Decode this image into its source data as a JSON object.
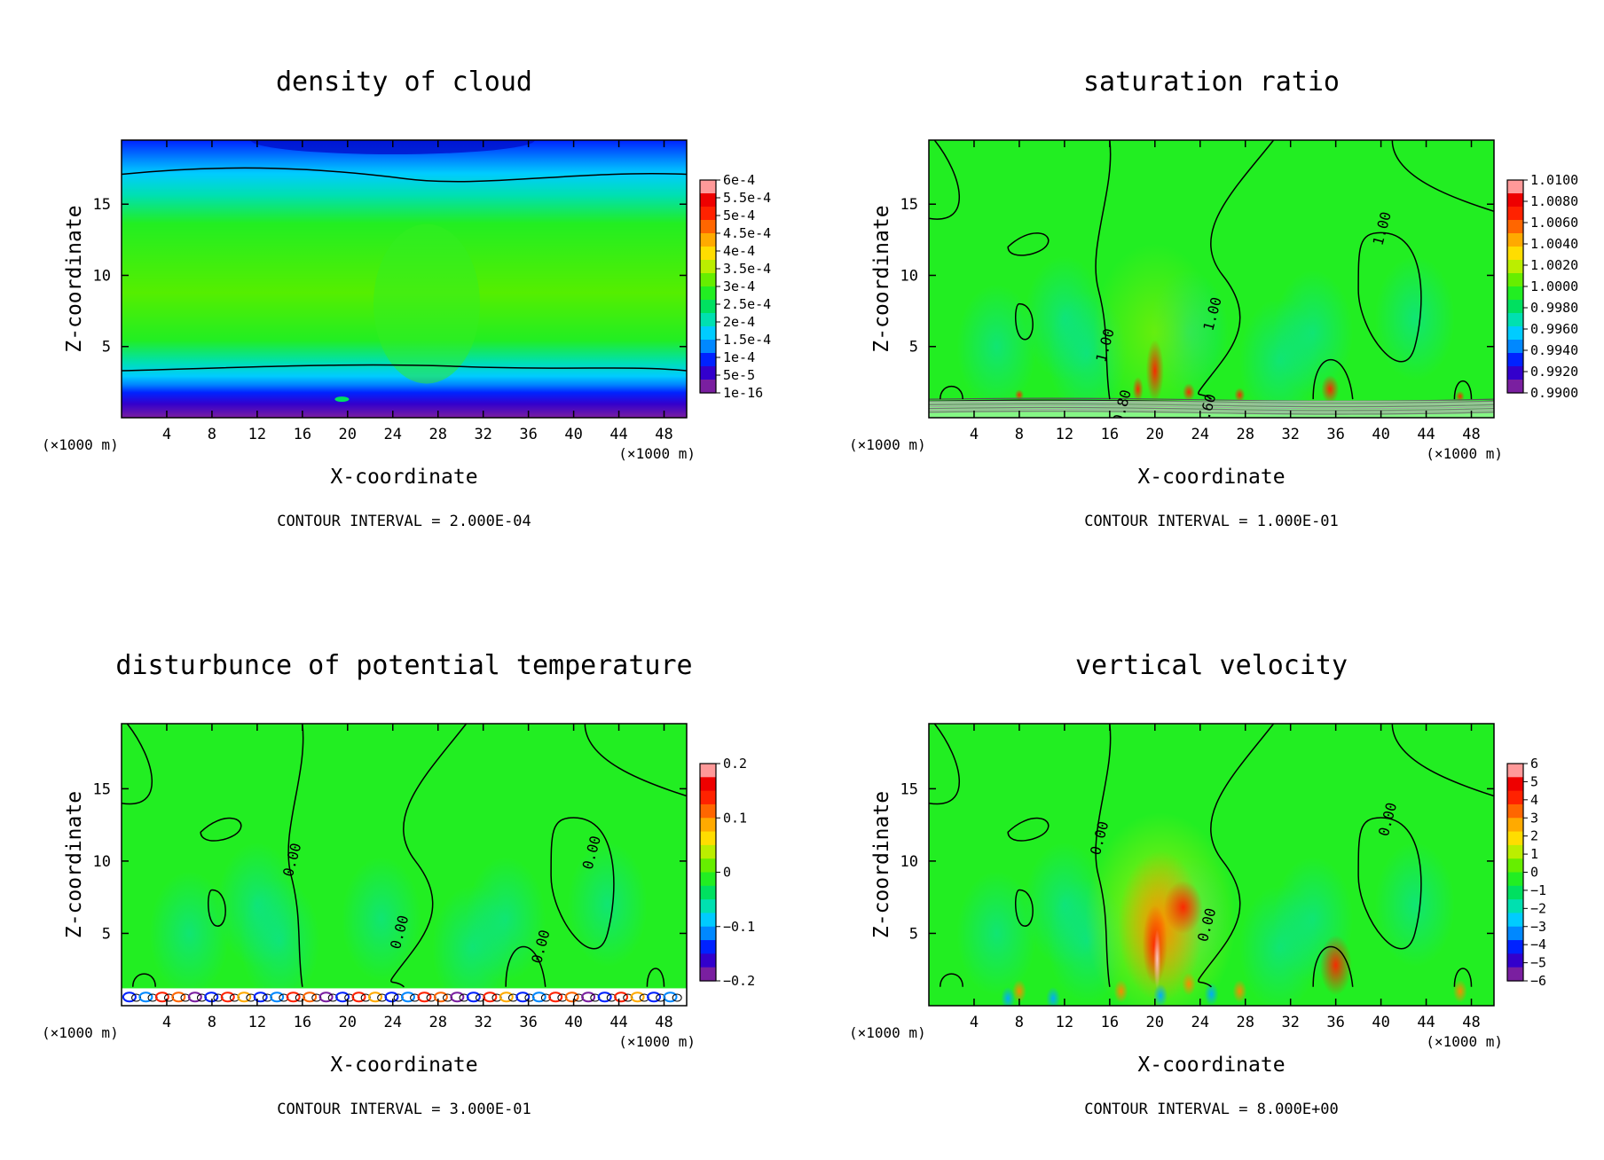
{
  "figure": {
    "palette": [
      "#7a1fa0",
      "#3300cc",
      "#0022ff",
      "#0088ff",
      "#00ccff",
      "#00e0b0",
      "#00e060",
      "#22ee22",
      "#66ee00",
      "#bbee00",
      "#ffdd00",
      "#ffaa00",
      "#ff6600",
      "#ff2200",
      "#ee0000",
      "#ff9999"
    ]
  },
  "chart_data": [
    {
      "type": "heatmap",
      "title": "density of cloud",
      "xlabel": "X-coordinate",
      "ylabel": "Z-coordinate",
      "x_unit": "(×1000 m)",
      "x_unit_right": "(×1000 m)",
      "x_ticks": [
        "4",
        "8",
        "12",
        "16",
        "20",
        "24",
        "28",
        "32",
        "36",
        "40",
        "44",
        "48"
      ],
      "y_ticks": [
        "5",
        "10",
        "15"
      ],
      "xlim": [
        0,
        50
      ],
      "ylim": [
        0,
        19.5
      ],
      "colorbar_labels": [
        "6e-4",
        "5.5e-4",
        "5e-4",
        "4.5e-4",
        "4e-4",
        "3.5e-4",
        "3e-4",
        "2.5e-4",
        "2e-4",
        "1.5e-4",
        "1e-4",
        "5e-5",
        "1e-16"
      ],
      "contour_interval": "CONTOUR INTERVAL = 2.000E-04",
      "contour_labels": []
    },
    {
      "type": "heatmap",
      "title": "saturation ratio",
      "xlabel": "X-coordinate",
      "ylabel": "Z-coordinate",
      "x_unit": "(×1000 m)",
      "x_unit_right": "(×1000 m)",
      "x_ticks": [
        "4",
        "8",
        "12",
        "16",
        "20",
        "24",
        "28",
        "32",
        "36",
        "40",
        "44",
        "48"
      ],
      "y_ticks": [
        "5",
        "10",
        "15"
      ],
      "xlim": [
        0,
        50
      ],
      "ylim": [
        0,
        19.5
      ],
      "colorbar_labels": [
        "1.0100",
        "1.0080",
        "1.0060",
        "1.0040",
        "1.0020",
        "1.0000",
        "0.9980",
        "0.9960",
        "0.9940",
        "0.9920",
        "0.9900"
      ],
      "contour_interval": "CONTOUR INTERVAL = 1.000E-01",
      "contour_labels": [
        {
          "text": "1.00",
          "x": 40.5,
          "z": 13.2
        },
        {
          "text": "1.00",
          "x": 25.5,
          "z": 7.2
        },
        {
          "text": "1.00",
          "x": 16,
          "z": 5
        },
        {
          "text": "0.80",
          "x": 17.5,
          "z": 0.7
        },
        {
          "text": "0.60",
          "x": 25,
          "z": 0.4
        }
      ]
    },
    {
      "type": "heatmap",
      "title": "disturbunce of potential temperature",
      "xlabel": "X-coordinate",
      "ylabel": "Z-coordinate",
      "x_unit": "(×1000 m)",
      "x_unit_right": "(×1000 m)",
      "x_ticks": [
        "4",
        "8",
        "12",
        "16",
        "20",
        "24",
        "28",
        "32",
        "36",
        "40",
        "44",
        "48"
      ],
      "y_ticks": [
        "5",
        "10",
        "15"
      ],
      "xlim": [
        0,
        50
      ],
      "ylim": [
        0,
        19.5
      ],
      "colorbar_labels": [
        "0.2",
        "0.1",
        "0",
        "−0.1",
        "−0.2"
      ],
      "contour_interval": "CONTOUR INTERVAL = 3.000E-01",
      "contour_labels": [
        {
          "text": "0.00",
          "x": 15.5,
          "z": 10
        },
        {
          "text": "0.00",
          "x": 42,
          "z": 10.5
        },
        {
          "text": "0.00",
          "x": 25,
          "z": 5
        },
        {
          "text": "0.00",
          "x": 37.5,
          "z": 4
        }
      ]
    },
    {
      "type": "heatmap",
      "title": "vertical velocity",
      "xlabel": "X-coordinate",
      "ylabel": "Z-coordinate",
      "x_unit": "(×1000 m)",
      "x_unit_right": "(×1000 m)",
      "x_ticks": [
        "4",
        "8",
        "12",
        "16",
        "20",
        "24",
        "28",
        "32",
        "36",
        "40",
        "44",
        "48"
      ],
      "y_ticks": [
        "5",
        "10",
        "15"
      ],
      "xlim": [
        0,
        50
      ],
      "ylim": [
        0,
        19.5
      ],
      "colorbar_labels": [
        "6",
        "5",
        "4",
        "3",
        "2",
        "1",
        "0",
        "−1",
        "−2",
        "−3",
        "−4",
        "−5",
        "−6"
      ],
      "contour_interval": "CONTOUR INTERVAL = 8.000E+00",
      "contour_labels": [
        {
          "text": "0.00",
          "x": 15.5,
          "z": 11.5
        },
        {
          "text": "0.00",
          "x": 41,
          "z": 12.8
        },
        {
          "text": "0.00",
          "x": 25,
          "z": 5.5
        }
      ]
    }
  ]
}
